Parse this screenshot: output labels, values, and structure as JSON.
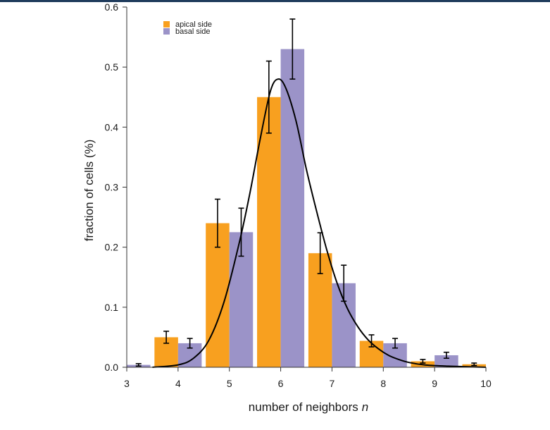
{
  "chart_data": {
    "type": "bar",
    "xlabel": "number of neighbors",
    "xlabel_italic": "n",
    "ylabel": "fraction of cells (%)",
    "xlim": [
      3,
      10
    ],
    "ylim": [
      0,
      0.6
    ],
    "xticks": [
      3,
      4,
      5,
      6,
      7,
      8,
      9,
      10
    ],
    "yticks": [
      "0.0",
      "0.1",
      "0.2",
      "0.3",
      "0.4",
      "0.5",
      "0.6"
    ],
    "legend_position": "top-left",
    "series": [
      {
        "name": "apical side",
        "color": "#f8a01f",
        "points": [
          {
            "n": 4,
            "value": 0.05,
            "err": 0.01
          },
          {
            "n": 5,
            "value": 0.24,
            "err": 0.04
          },
          {
            "n": 6,
            "value": 0.45,
            "err": 0.06
          },
          {
            "n": 7,
            "value": 0.19,
            "err": 0.034
          },
          {
            "n": 8,
            "value": 0.044,
            "err": 0.01
          },
          {
            "n": 9,
            "value": 0.01,
            "err": 0.003
          },
          {
            "n": 10,
            "value": 0.005,
            "err": 0.002
          }
        ]
      },
      {
        "name": "basal side",
        "color": "#9b93c8",
        "points": [
          {
            "n": 3,
            "value": 0.004,
            "err": 0.002
          },
          {
            "n": 4,
            "value": 0.04,
            "err": 0.008
          },
          {
            "n": 5,
            "value": 0.225,
            "err": 0.04
          },
          {
            "n": 6,
            "value": 0.53,
            "err": 0.05
          },
          {
            "n": 7,
            "value": 0.14,
            "err": 0.03
          },
          {
            "n": 8,
            "value": 0.04,
            "err": 0.008
          },
          {
            "n": 9,
            "value": 0.02,
            "err": 0.005
          }
        ]
      }
    ],
    "fit_curve": {
      "type": "smooth distribution curve",
      "color": "#000000",
      "points": [
        [
          3.5,
          0.0
        ],
        [
          4.0,
          0.004
        ],
        [
          4.3,
          0.015
        ],
        [
          4.6,
          0.045
        ],
        [
          4.9,
          0.11
        ],
        [
          5.2,
          0.21
        ],
        [
          5.4,
          0.29
        ],
        [
          5.6,
          0.38
        ],
        [
          5.8,
          0.46
        ],
        [
          5.95,
          0.48
        ],
        [
          6.1,
          0.465
        ],
        [
          6.3,
          0.41
        ],
        [
          6.5,
          0.33
        ],
        [
          6.7,
          0.26
        ],
        [
          6.9,
          0.195
        ],
        [
          7.1,
          0.14
        ],
        [
          7.3,
          0.098
        ],
        [
          7.5,
          0.068
        ],
        [
          7.7,
          0.046
        ],
        [
          7.9,
          0.031
        ],
        [
          8.1,
          0.02
        ],
        [
          8.3,
          0.013
        ],
        [
          8.5,
          0.008
        ],
        [
          8.8,
          0.004
        ],
        [
          9.2,
          0.002
        ],
        [
          9.6,
          0.001
        ],
        [
          10.0,
          0.0
        ]
      ]
    }
  }
}
